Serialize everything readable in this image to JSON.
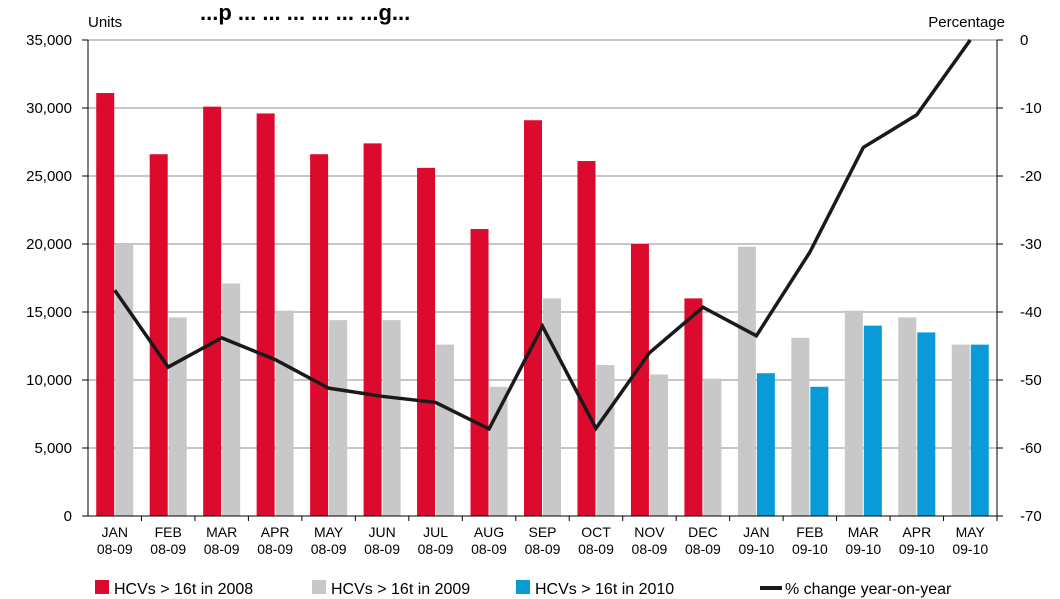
{
  "chart_data": {
    "type": "bar",
    "title": "...p ... ... ... ... ... ...g...",
    "ylabel_left": "Units",
    "ylabel_right": "Percentage",
    "categories": [
      [
        "JAN",
        "08-09"
      ],
      [
        "FEB",
        "08-09"
      ],
      [
        "MAR",
        "08-09"
      ],
      [
        "APR",
        "08-09"
      ],
      [
        "MAY",
        "08-09"
      ],
      [
        "JUN",
        "08-09"
      ],
      [
        "JUL",
        "08-09"
      ],
      [
        "AUG",
        "08-09"
      ],
      [
        "SEP",
        "08-09"
      ],
      [
        "OCT",
        "08-09"
      ],
      [
        "NOV",
        "08-09"
      ],
      [
        "DEC",
        "08-09"
      ],
      [
        "JAN",
        "09-10"
      ],
      [
        "FEB",
        "09-10"
      ],
      [
        "MAR",
        "09-10"
      ],
      [
        "APR",
        "09-10"
      ],
      [
        "MAY",
        "09-10"
      ]
    ],
    "ylim_left": [
      0,
      35000
    ],
    "yticks_left": [
      0,
      5000,
      10000,
      15000,
      20000,
      25000,
      30000,
      35000
    ],
    "ytick_labels_left": [
      "0",
      "5,000",
      "10,000",
      "15,000",
      "20,000",
      "25,000",
      "30,000",
      "35,000"
    ],
    "ylim_right": [
      -70,
      0
    ],
    "yticks_right": [
      -70,
      -60,
      -50,
      -40,
      -30,
      -20,
      -10,
      0
    ],
    "ytick_labels_right": [
      "-70",
      "-60",
      "-50",
      "-40",
      "-30",
      "-20",
      "-10",
      "0"
    ],
    "grid": true,
    "legend_position": "bottom",
    "series": [
      {
        "name": "HCVs > 16t in 2008",
        "type": "bar",
        "axis": "left",
        "color": "#dc0a2d",
        "values": [
          31100,
          26600,
          30100,
          29600,
          26600,
          27400,
          25600,
          21100,
          29100,
          26100,
          20000,
          16000,
          null,
          null,
          null,
          null,
          null
        ]
      },
      {
        "name": "HCVs > 16t in 2009",
        "type": "bar",
        "axis": "left",
        "color": "#c8c8c8",
        "values": [
          20000,
          14600,
          17100,
          15100,
          14400,
          14400,
          12600,
          9500,
          16000,
          11100,
          10400,
          10100,
          19800,
          13100,
          15100,
          14600,
          12600
        ]
      },
      {
        "name": "HCVs > 16t in 2010",
        "type": "bar",
        "axis": "left",
        "color": "#0a9ad7",
        "values": [
          null,
          null,
          null,
          null,
          null,
          null,
          null,
          null,
          null,
          null,
          null,
          null,
          10500,
          9500,
          14000,
          13500,
          12600
        ]
      },
      {
        "name": "% change year-on-year",
        "type": "line",
        "axis": "right",
        "color": "#1a1a1a",
        "values": [
          -36.8,
          -48.1,
          -43.8,
          -47.0,
          -51.2,
          -52.4,
          -53.3,
          -57.2,
          -42.1,
          -57.1,
          -46.0,
          -39.3,
          -43.5,
          -31.2,
          -15.8,
          -11.0,
          0
        ]
      }
    ]
  }
}
